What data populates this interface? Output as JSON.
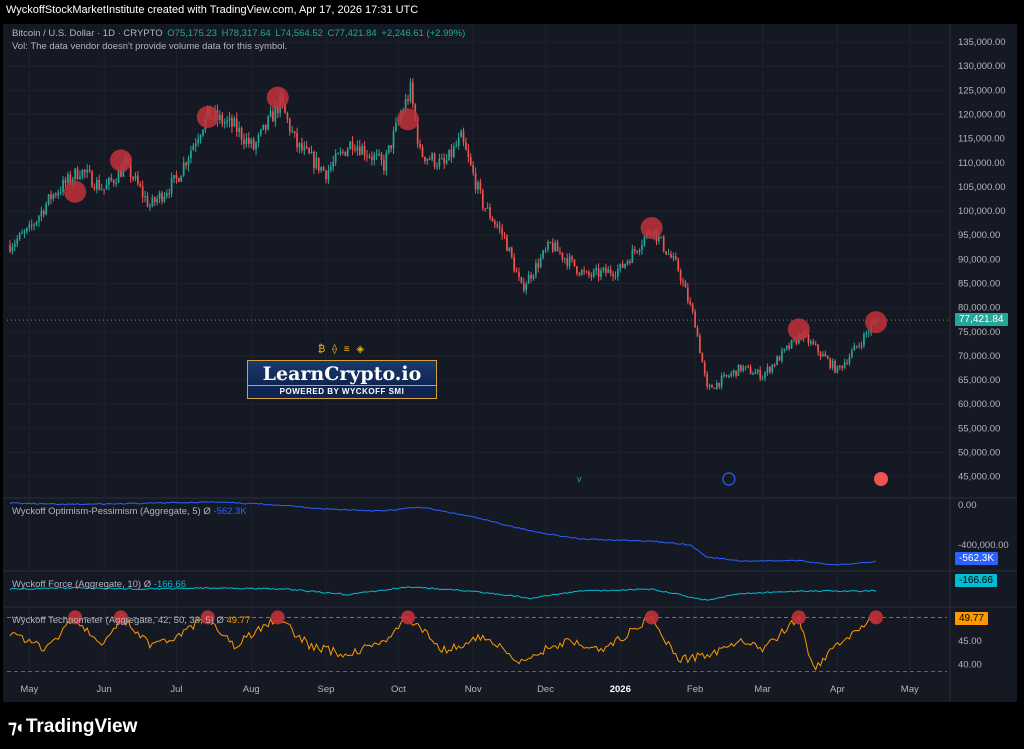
{
  "header": {
    "text": "WyckoffStockMarketInstitute created with TradingView.com, Apr 17, 2026 17:31 UTC"
  },
  "legend": {
    "symbol": "Bitcoin / U.S. Dollar · 1D · CRYPTO",
    "open": "O75,175.23",
    "high": "H78,317.64",
    "low": "L74,564.52",
    "close": "C77,421.84",
    "change": "+2,246.61 (+2.99%)",
    "vol_note": "Vol: The data vendor doesn't provide volume data for this symbol."
  },
  "indicators": {
    "op": {
      "name": "Wyckoff Optimism-Pessimism (Aggregate, 5)",
      "sym": "Ø",
      "value": "-562.3K"
    },
    "force": {
      "name": "Wyckoff Force (Aggregate, 10)",
      "sym": "Ø",
      "value": "-166.66"
    },
    "techno": {
      "name": "Wyckoff Technometer (Aggregate, 42, 50, 38, 5)",
      "sym": "Ø",
      "value": "49.77"
    }
  },
  "price_tag": "77,421.84",
  "brand": {
    "main": "LearnCrypto.io",
    "sub": "POWERED BY WYCKOFF SMI",
    "icons": "₿ ⟠ ≡ ◈"
  },
  "footer": {
    "logo": "TradingView"
  },
  "colors": {
    "up": "#26a69a",
    "down": "#ef5350",
    "bg": "#151924",
    "op": "#2962ff",
    "force": "#00bcd4",
    "techno": "#ff9800",
    "marker": "#c2313a"
  },
  "chart_data": [
    {
      "type": "candlestick",
      "title": "Bitcoin / U.S. Dollar · 1D · CRYPTO",
      "x_ticks": [
        "May",
        "Jun",
        "Jul",
        "Aug",
        "Sep",
        "Oct",
        "Nov",
        "Dec",
        "2026",
        "Feb",
        "Mar",
        "Apr",
        "May"
      ],
      "y_ticks": [
        "135,000.00",
        "130,000.00",
        "125,000.00",
        "120,000.00",
        "115,000.00",
        "110,000.00",
        "105,000.00",
        "100,000.00",
        "95,000.00",
        "90,000.00",
        "85,000.00",
        "80,000.00",
        "75,000.00",
        "70,000.00",
        "65,000.00",
        "60,000.00",
        "55,000.00",
        "50,000.00",
        "45,000.00"
      ],
      "ylim": [
        41000,
        137500
      ],
      "close_path": [
        [
          "Apr 23",
          93000
        ],
        [
          "May 01",
          96000
        ],
        [
          "May 10",
          103000
        ],
        [
          "May 22",
          108500
        ],
        [
          "Jun 01",
          104500
        ],
        [
          "Jun 10",
          109500
        ],
        [
          "Jun 20",
          101000
        ],
        [
          "Jul 01",
          106500
        ],
        [
          "Jul 10",
          116000
        ],
        [
          "Jul 14",
          120000
        ],
        [
          "Jul 25",
          117500
        ],
        [
          "Aug 02",
          113000
        ],
        [
          "Aug 13",
          122500
        ],
        [
          "Aug 20",
          113500
        ],
        [
          "Sep 01",
          108000
        ],
        [
          "Sep 12",
          114500
        ],
        [
          "Sep 25",
          109500
        ],
        [
          "Oct 01",
          118500
        ],
        [
          "Oct 06",
          125000
        ],
        [
          "Oct 10",
          112000
        ],
        [
          "Oct 20",
          109500
        ],
        [
          "Oct 27",
          115000
        ],
        [
          "Nov 05",
          101500
        ],
        [
          "Nov 14",
          94500
        ],
        [
          "Nov 21",
          84000
        ],
        [
          "Dec 03",
          93000
        ],
        [
          "Dec 18",
          86500
        ],
        [
          "Jan 01",
          88000
        ],
        [
          "Jan 14",
          96500
        ],
        [
          "Jan 25",
          88000
        ],
        [
          "Feb 01",
          77000
        ],
        [
          "Feb 06",
          63000
        ],
        [
          "Feb 20",
          67500
        ],
        [
          "Mar 01",
          66000
        ],
        [
          "Mar 17",
          74500
        ],
        [
          "Apr 01",
          67000
        ],
        [
          "Apr 10",
          72500
        ],
        [
          "Apr 17",
          77421.84
        ]
      ],
      "highlighted_peaks": [
        [
          "May 20",
          104000
        ],
        [
          "Jun 08",
          110500
        ],
        [
          "Jul 14",
          119500
        ],
        [
          "Aug 12",
          123500
        ],
        [
          "Oct 05",
          119000
        ],
        [
          "Jan 14",
          96500
        ],
        [
          "Mar 16",
          75500
        ],
        [
          "Apr 17",
          77000
        ]
      ],
      "last_price": 77421.84
    },
    {
      "type": "line",
      "name": "Wyckoff Optimism-Pessimism (Aggregate, 5)",
      "y_ticks": [
        "0.00",
        "-400,000.00"
      ],
      "ylim": [
        -650000,
        50000
      ],
      "points": [
        [
          "Apr 23",
          20000
        ],
        [
          "May 15",
          5000
        ],
        [
          "Jun 15",
          15000
        ],
        [
          "Jul 15",
          30000
        ],
        [
          "Aug 10",
          5000
        ],
        [
          "Sep 01",
          -40000
        ],
        [
          "Sep 25",
          -60000
        ],
        [
          "Oct 10",
          -20000
        ],
        [
          "Nov 01",
          -120000
        ],
        [
          "Nov 25",
          -260000
        ],
        [
          "Dec 15",
          -340000
        ],
        [
          "Jan 14",
          -360000
        ],
        [
          "Jan 30",
          -400000
        ],
        [
          "Feb 06",
          -520000
        ],
        [
          "Feb 20",
          -560000
        ],
        [
          "Mar 15",
          -555000
        ],
        [
          "Apr 01",
          -600000
        ],
        [
          "Apr 17",
          -562300
        ]
      ]
    },
    {
      "type": "line",
      "name": "Wyckoff Force (Aggregate, 10)",
      "ylim": [
        -300,
        0
      ],
      "points": [
        [
          "Apr 23",
          -150
        ],
        [
          "May 20",
          -140
        ],
        [
          "Jun 15",
          -150
        ],
        [
          "Jul 15",
          -140
        ],
        [
          "Aug 15",
          -150
        ],
        [
          "Sep 10",
          -200
        ],
        [
          "Oct 05",
          -130
        ],
        [
          "Nov 01",
          -170
        ],
        [
          "Nov 25",
          -230
        ],
        [
          "Dec 15",
          -170
        ],
        [
          "Jan 14",
          -150
        ],
        [
          "Feb 06",
          -250
        ],
        [
          "Feb 20",
          -190
        ],
        [
          "Mar 15",
          -170
        ],
        [
          "Apr 17",
          -166.66
        ]
      ]
    },
    {
      "type": "line",
      "name": "Wyckoff Technometer (Aggregate, 42, 50, 38, 5)",
      "y_ticks": [
        "45.00",
        "40.00"
      ],
      "ylim": [
        38,
        52
      ],
      "points": [
        [
          "Apr 23",
          47
        ],
        [
          "May 08",
          43
        ],
        [
          "May 20",
          50
        ],
        [
          "Jun 01",
          44
        ],
        [
          "Jun 08",
          50
        ],
        [
          "Jun 20",
          44
        ],
        [
          "Jul 01",
          46
        ],
        [
          "Jul 14",
          50
        ],
        [
          "Jul 25",
          44
        ],
        [
          "Aug 12",
          50
        ],
        [
          "Aug 25",
          44
        ],
        [
          "Sep 10",
          42
        ],
        [
          "Sep 25",
          45
        ],
        [
          "Oct 05",
          50
        ],
        [
          "Oct 20",
          43
        ],
        [
          "Nov 05",
          46
        ],
        [
          "Nov 20",
          41
        ],
        [
          "Dec 10",
          45
        ],
        [
          "Dec 25",
          43
        ],
        [
          "Jan 14",
          50
        ],
        [
          "Jan 25",
          41
        ],
        [
          "Feb 06",
          42
        ],
        [
          "Feb 20",
          45
        ],
        [
          "Mar 01",
          43
        ],
        [
          "Mar 16",
          50
        ],
        [
          "Mar 22",
          39
        ],
        [
          "Apr 01",
          44
        ],
        [
          "Apr 10",
          48
        ],
        [
          "Apr 17",
          49.77
        ]
      ],
      "highlighted_peaks": [
        [
          "May 20",
          50
        ],
        [
          "Jun 08",
          50
        ],
        [
          "Jul 14",
          50
        ],
        [
          "Aug 12",
          50
        ],
        [
          "Oct 05",
          50
        ],
        [
          "Jan 14",
          50
        ],
        [
          "Mar 16",
          50
        ],
        [
          "Apr 17",
          50
        ]
      ]
    }
  ]
}
